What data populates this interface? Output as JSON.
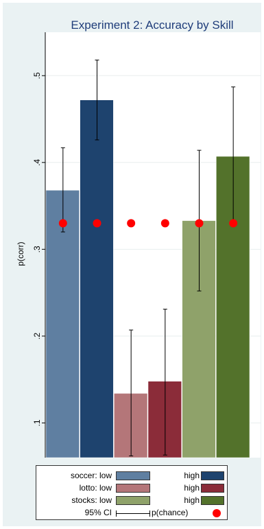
{
  "chart_data": {
    "type": "bar",
    "title": "Experiment 2: Accuracy by Skill",
    "ylabel": "p(corr)",
    "xlabel": "",
    "ylim": [
      0.06,
      0.55
    ],
    "yticks": [
      0.1,
      0.2,
      0.3,
      0.4,
      0.5
    ],
    "ytick_labels": [
      ".1",
      ".2",
      ".3",
      ".4",
      ".5"
    ],
    "grid": "horizontal",
    "chance_level": 0.33,
    "bars": [
      {
        "group": "soccer",
        "skill": "low",
        "value": 0.368,
        "ci": [
          0.32,
          0.417
        ],
        "color": "#5f7fa1"
      },
      {
        "group": "soccer",
        "skill": "high",
        "value": 0.472,
        "ci": [
          0.426,
          0.518
        ],
        "color": "#1e436e"
      },
      {
        "group": "lotto",
        "skill": "low",
        "value": 0.134,
        "ci": [
          0.062,
          0.207
        ],
        "color": "#b47679"
      },
      {
        "group": "lotto",
        "skill": "high",
        "value": 0.148,
        "ci": [
          0.063,
          0.231
        ],
        "color": "#8b2c39"
      },
      {
        "group": "stocks",
        "skill": "low",
        "value": 0.333,
        "ci": [
          0.252,
          0.414
        ],
        "color": "#8fa26a"
      },
      {
        "group": "stocks",
        "skill": "high",
        "value": 0.407,
        "ci": [
          0.33,
          0.487
        ],
        "color": "#53722b"
      }
    ]
  },
  "legend": {
    "rows": [
      {
        "left_label": "soccer: low",
        "left_color": "#5f7fa1",
        "right_label": "high",
        "right_color": "#1e436e"
      },
      {
        "left_label": "lotto: low",
        "left_color": "#b47679",
        "right_label": "high",
        "right_color": "#8b2c39"
      },
      {
        "left_label": "stocks: low",
        "left_color": "#8fa26a",
        "right_label": "high",
        "right_color": "#53722b"
      }
    ],
    "ci_label": "95% CI",
    "chance_label": "p(chance)",
    "chance_color": "#ff0000"
  }
}
